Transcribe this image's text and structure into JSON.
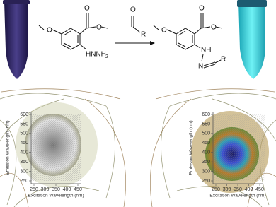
{
  "reaction": {
    "reactant": {
      "methoxy_oxygen": "O",
      "carbonyl_oxygen": "O",
      "ester_oxygen": "O",
      "hydrazine": "HNNH",
      "hydrazine_subscript": "2"
    },
    "reagent": {
      "oxygen": "O",
      "group": "R"
    },
    "product": {
      "methoxy_oxygen": "O",
      "carbonyl_oxygen": "O",
      "ester_oxygen": "O",
      "amine": "NH",
      "imine_nitrogen": "N",
      "group": "R"
    }
  },
  "plots": [
    {
      "emission_label": "Emission Wavelength (nm)",
      "emission_ticks": [
        250,
        300,
        350,
        400,
        450,
        500,
        550,
        600
      ],
      "excitation_label": "Excitation Wavelength (nm)",
      "excitation_ticks": [
        250,
        300,
        350,
        400,
        450
      ]
    },
    {
      "emission_label": "Emission Wavelength (nm)",
      "emission_ticks": [
        250,
        300,
        350,
        400,
        450,
        500,
        550,
        600
      ],
      "excitation_label": "Excitation Wavelength (nm)",
      "excitation_ticks": [
        250,
        300,
        350,
        400,
        450
      ]
    }
  ]
}
